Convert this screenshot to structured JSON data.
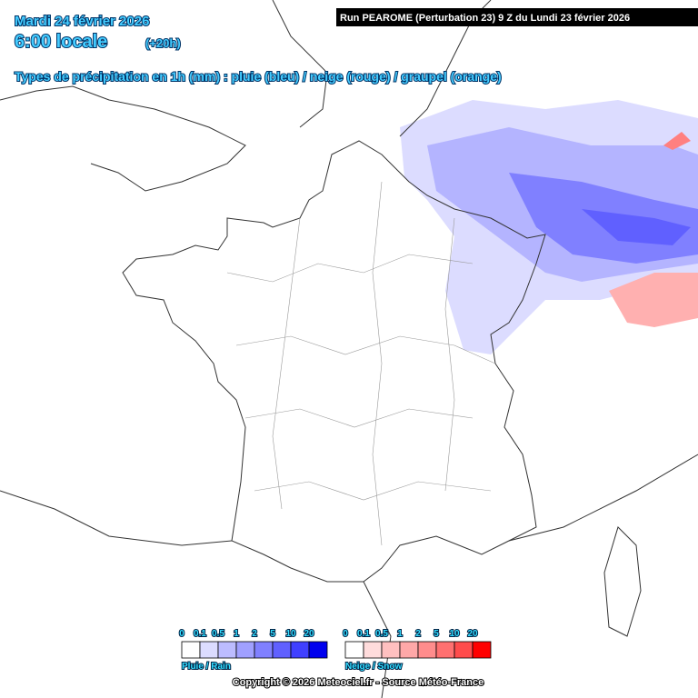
{
  "header": {
    "date": "Mardi 24 février 2026",
    "time": "6:00 locale",
    "lead": "(+20h)",
    "subtitle": "Types de précipitation en 1h (mm) : pluie (bleu) / neige (rouge) / graupel (orange)"
  },
  "run_banner": "Run PEAROME (Perturbation 23) 9 Z du Lundi 23 février 2026",
  "legend": {
    "rain": {
      "values": [
        0,
        0.1,
        0.5,
        1,
        2,
        5,
        10,
        20
      ],
      "colors": [
        "#ffffff",
        "#dcdcff",
        "#bcbcff",
        "#a0a0ff",
        "#8080ff",
        "#6060ff",
        "#4040ff",
        "#0000ee"
      ],
      "label": "Pluie / Rain"
    },
    "snow": {
      "values": [
        0,
        0.1,
        0.5,
        1,
        2,
        5,
        10,
        20
      ],
      "colors": [
        "#ffffff",
        "#ffdcdc",
        "#ffc0c0",
        "#ffa8a8",
        "#ff8c8c",
        "#ff7070",
        "#ff4c4c",
        "#ff0000"
      ],
      "label": "Neige / Snow"
    }
  },
  "copyright": "Copyright © 2026 Meteociel.fr - Source Météo-France"
}
